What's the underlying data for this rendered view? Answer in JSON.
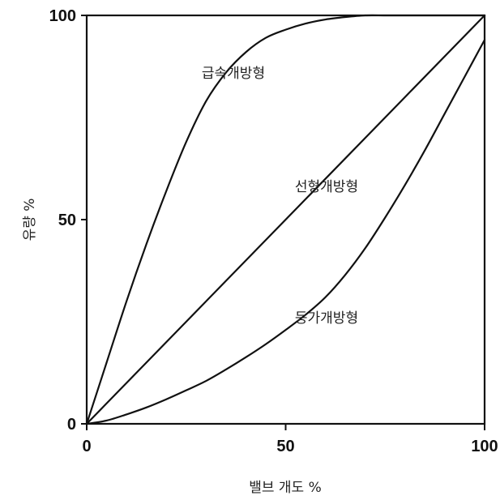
{
  "chart_data": {
    "type": "line",
    "title": "",
    "xlabel": "밸브 개도 %",
    "ylabel": "유량 %",
    "xlim": [
      0,
      100
    ],
    "ylim": [
      0,
      100
    ],
    "xticks": [
      "0",
      "50",
      "100"
    ],
    "yticks": [
      "0",
      "50",
      "100"
    ],
    "grid": false,
    "legend": "none",
    "line_color": "#111111",
    "series": [
      {
        "name": "급속개방형",
        "x": [
          0,
          5,
          10,
          15,
          20,
          25,
          30,
          35,
          40,
          45,
          50,
          55,
          60,
          65,
          70,
          75,
          80,
          85,
          90,
          95,
          100
        ],
        "y": [
          0,
          15,
          30,
          44,
          57,
          69,
          79,
          86,
          91,
          94.5,
          96.5,
          98,
          99,
          99.6,
          100,
          100,
          100,
          100,
          100,
          100,
          100
        ]
      },
      {
        "name": "선형개방형",
        "x": [
          0,
          100
        ],
        "y": [
          0,
          100
        ]
      },
      {
        "name": "등가개방형",
        "x": [
          0,
          5,
          10,
          15,
          20,
          25,
          30,
          35,
          40,
          45,
          50,
          55,
          60,
          65,
          70,
          75,
          80,
          85,
          90,
          95,
          100
        ],
        "y": [
          0,
          0.8,
          2.3,
          4,
          6,
          8.2,
          10.5,
          13.3,
          16.3,
          19.5,
          23,
          26.7,
          31,
          36.5,
          43,
          50.5,
          58.5,
          67,
          76,
          85,
          94
        ]
      }
    ]
  }
}
